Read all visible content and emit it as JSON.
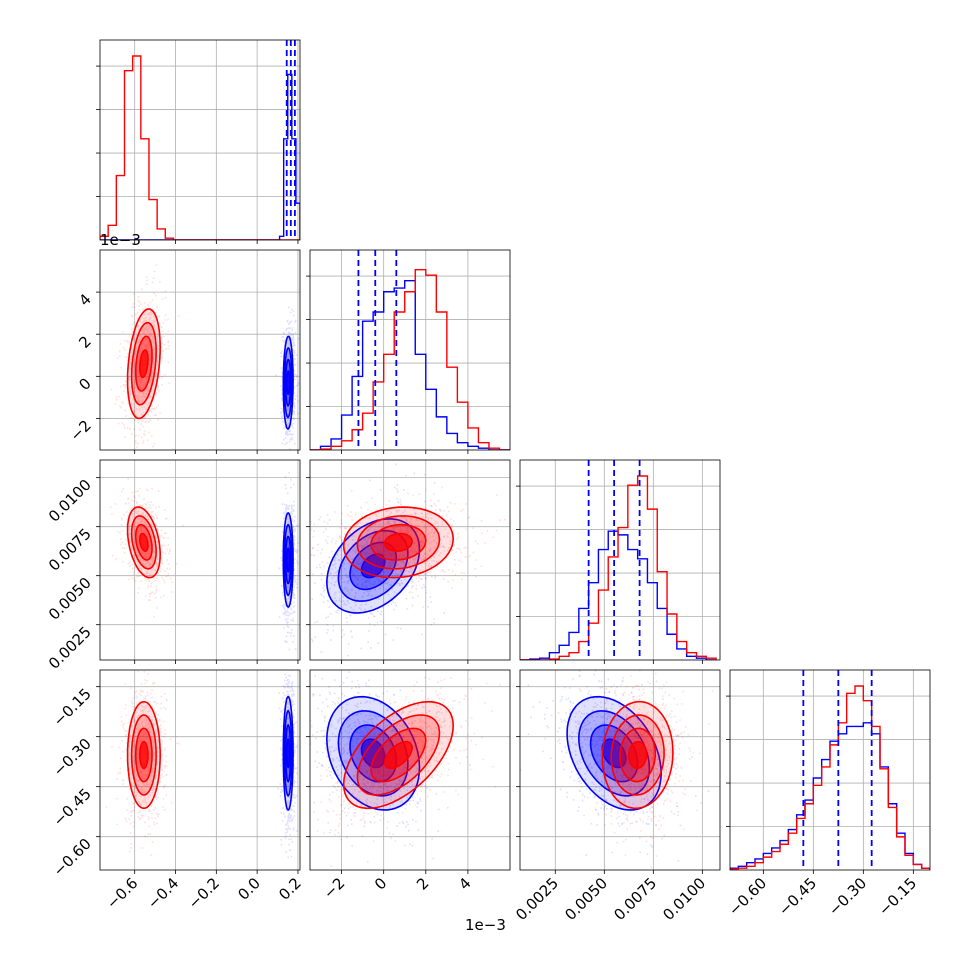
{
  "chart_data": {
    "type": "corner",
    "parameters": 4,
    "grid": true,
    "series": [
      {
        "color": "#ff0000"
      },
      {
        "color": "#0000ff"
      }
    ],
    "param_ranges": [
      [
        -0.77,
        0.21
      ],
      [
        -0.0035,
        0.006
      ],
      [
        0.0007,
        0.0109
      ],
      [
        -0.7,
        -0.1
      ]
    ],
    "ticks": {
      "p0": {
        "values": [
          -0.6,
          -0.4,
          -0.2,
          0.0,
          0.2
        ],
        "labels": [
          "−0.6",
          "−0.4",
          "−0.2",
          "0.0",
          "0.2"
        ]
      },
      "p1": {
        "values": [
          -0.002,
          0.0,
          0.002,
          0.004
        ],
        "labels": [
          "−2",
          "0",
          "2",
          "4"
        ],
        "offset_text": "1e−3"
      },
      "p2": {
        "values": [
          0.0025,
          0.005,
          0.0075,
          0.01
        ],
        "labels": [
          "0.0025",
          "0.0050",
          "0.0075",
          "0.0100"
        ]
      },
      "p3": {
        "values": [
          -0.6,
          -0.45,
          -0.3,
          -0.15
        ],
        "labels": [
          "−0.60",
          "−0.45",
          "−0.30",
          "−0.15"
        ]
      }
    },
    "histograms": [
      {
        "param": 0,
        "bin_edges": [
          -0.77,
          -0.73,
          -0.69,
          -0.65,
          -0.61,
          -0.57,
          -0.53,
          -0.49,
          -0.45,
          -0.41,
          -0.37,
          0.11,
          0.13,
          0.15,
          0.17,
          0.19,
          0.21
        ],
        "red": [
          0.02,
          0.08,
          0.35,
          0.92,
          1.0,
          0.55,
          0.22,
          0.06,
          0.01,
          0.0,
          0,
          0,
          0,
          0,
          0,
          0
        ],
        "blue": [
          0,
          0,
          0,
          0,
          0,
          0,
          0,
          0,
          0,
          0,
          0,
          0.02,
          0.55,
          0.9,
          0.55,
          0.2
        ],
        "quantile_lines": [
          0.145,
          0.165,
          0.185
        ]
      },
      {
        "param": 1,
        "bin_edges": [
          -0.0035,
          -0.003,
          -0.0025,
          -0.002,
          -0.0015,
          -0.001,
          -0.0005,
          0.0,
          0.0005,
          0.001,
          0.0015,
          0.002,
          0.0025,
          0.003,
          0.0035,
          0.004,
          0.0045,
          0.005,
          0.0055,
          0.006
        ],
        "red": [
          0.0,
          0.005,
          0.02,
          0.05,
          0.11,
          0.2,
          0.37,
          0.52,
          0.75,
          0.86,
          0.98,
          0.95,
          0.75,
          0.45,
          0.26,
          0.12,
          0.04,
          0.01,
          0.0
        ],
        "blue": [
          0.0,
          0.02,
          0.06,
          0.19,
          0.4,
          0.7,
          0.75,
          0.86,
          0.88,
          0.92,
          0.52,
          0.33,
          0.18,
          0.09,
          0.04,
          0.02,
          0.01,
          0.0,
          0.0
        ],
        "quantile_lines": [
          -0.0012,
          -0.0004,
          0.0006
        ]
      },
      {
        "param": 2,
        "bin_edges": [
          0.0007,
          0.0012,
          0.0017,
          0.0022,
          0.0027,
          0.0032,
          0.0037,
          0.0042,
          0.0047,
          0.0052,
          0.0057,
          0.0062,
          0.0067,
          0.0072,
          0.0077,
          0.0082,
          0.0087,
          0.0092,
          0.0097,
          0.0102,
          0.0107
        ],
        "red": [
          0.0,
          0.0,
          0.0,
          0.005,
          0.02,
          0.04,
          0.1,
          0.2,
          0.38,
          0.56,
          0.72,
          0.95,
          1.0,
          0.82,
          0.48,
          0.25,
          0.1,
          0.04,
          0.02,
          0.01
        ],
        "blue": [
          0.0,
          0.005,
          0.01,
          0.04,
          0.08,
          0.15,
          0.28,
          0.42,
          0.6,
          0.7,
          0.68,
          0.6,
          0.55,
          0.42,
          0.28,
          0.14,
          0.06,
          0.02,
          0.01,
          0.0
        ],
        "quantile_lines": [
          0.0042,
          0.0055,
          0.0068
        ]
      },
      {
        "param": 3,
        "bin_edges": [
          -0.7,
          -0.675,
          -0.65,
          -0.625,
          -0.6,
          -0.575,
          -0.55,
          -0.525,
          -0.5,
          -0.475,
          -0.45,
          -0.425,
          -0.4,
          -0.375,
          -0.35,
          -0.325,
          -0.3,
          -0.275,
          -0.25,
          -0.225,
          -0.2,
          -0.175,
          -0.15,
          -0.125,
          -0.1
        ],
        "red": [
          0.005,
          0.01,
          0.02,
          0.04,
          0.07,
          0.1,
          0.14,
          0.2,
          0.28,
          0.36,
          0.46,
          0.56,
          0.68,
          0.8,
          0.96,
          1.0,
          0.92,
          0.78,
          0.55,
          0.34,
          0.18,
          0.08,
          0.03,
          0.01
        ],
        "blue": [
          0.01,
          0.02,
          0.04,
          0.06,
          0.09,
          0.12,
          0.16,
          0.22,
          0.3,
          0.38,
          0.5,
          0.6,
          0.7,
          0.74,
          0.78,
          0.78,
          0.8,
          0.74,
          0.56,
          0.36,
          0.2,
          0.09,
          0.03,
          0.01
        ],
        "quantile_lines": [
          -0.48,
          -0.375,
          -0.275
        ]
      }
    ],
    "joint": [
      {
        "x": 0,
        "y": 1,
        "red": {
          "mean": [
            -0.555,
            0.0006
          ],
          "sd": [
            0.04,
            0.0013
          ],
          "rho": 0.3
        },
        "blue": {
          "mean": [
            0.152,
            -0.0003
          ],
          "sd": [
            0.012,
            0.0011
          ],
          "rho": 0.05
        }
      },
      {
        "x": 0,
        "y": 2,
        "red": {
          "mean": [
            -0.555,
            0.0067
          ],
          "sd": [
            0.04,
            0.0009
          ],
          "rho": -0.35
        },
        "blue": {
          "mean": [
            0.152,
            0.0058
          ],
          "sd": [
            0.012,
            0.0012
          ],
          "rho": 0.0
        }
      },
      {
        "x": 0,
        "y": 3,
        "red": {
          "mean": [
            -0.555,
            -0.355
          ],
          "sd": [
            0.04,
            0.08
          ],
          "rho": 0.0
        },
        "blue": {
          "mean": [
            0.152,
            -0.35
          ],
          "sd": [
            0.012,
            0.085
          ],
          "rho": 0.0
        }
      },
      {
        "x": 1,
        "y": 2,
        "red": {
          "mean": [
            0.0007,
            0.0067
          ],
          "sd": [
            0.0013,
            0.0009
          ],
          "rho": 0.1
        },
        "blue": {
          "mean": [
            -0.0005,
            0.0055
          ],
          "sd": [
            0.0011,
            0.0012
          ],
          "rho": 0.35
        }
      },
      {
        "x": 1,
        "y": 3,
        "red": {
          "mean": [
            0.0007,
            -0.355
          ],
          "sd": [
            0.0013,
            0.08
          ],
          "rho": 0.55
        },
        "blue": {
          "mean": [
            -0.0005,
            -0.35
          ],
          "sd": [
            0.0011,
            0.085
          ],
          "rho": -0.25
        }
      },
      {
        "x": 2,
        "y": 3,
        "red": {
          "mean": [
            0.0067,
            -0.355
          ],
          "sd": [
            0.0009,
            0.08
          ],
          "rho": 0.05
        },
        "blue": {
          "mean": [
            0.0055,
            -0.35
          ],
          "sd": [
            0.0012,
            0.085
          ],
          "rho": -0.35
        }
      }
    ]
  }
}
